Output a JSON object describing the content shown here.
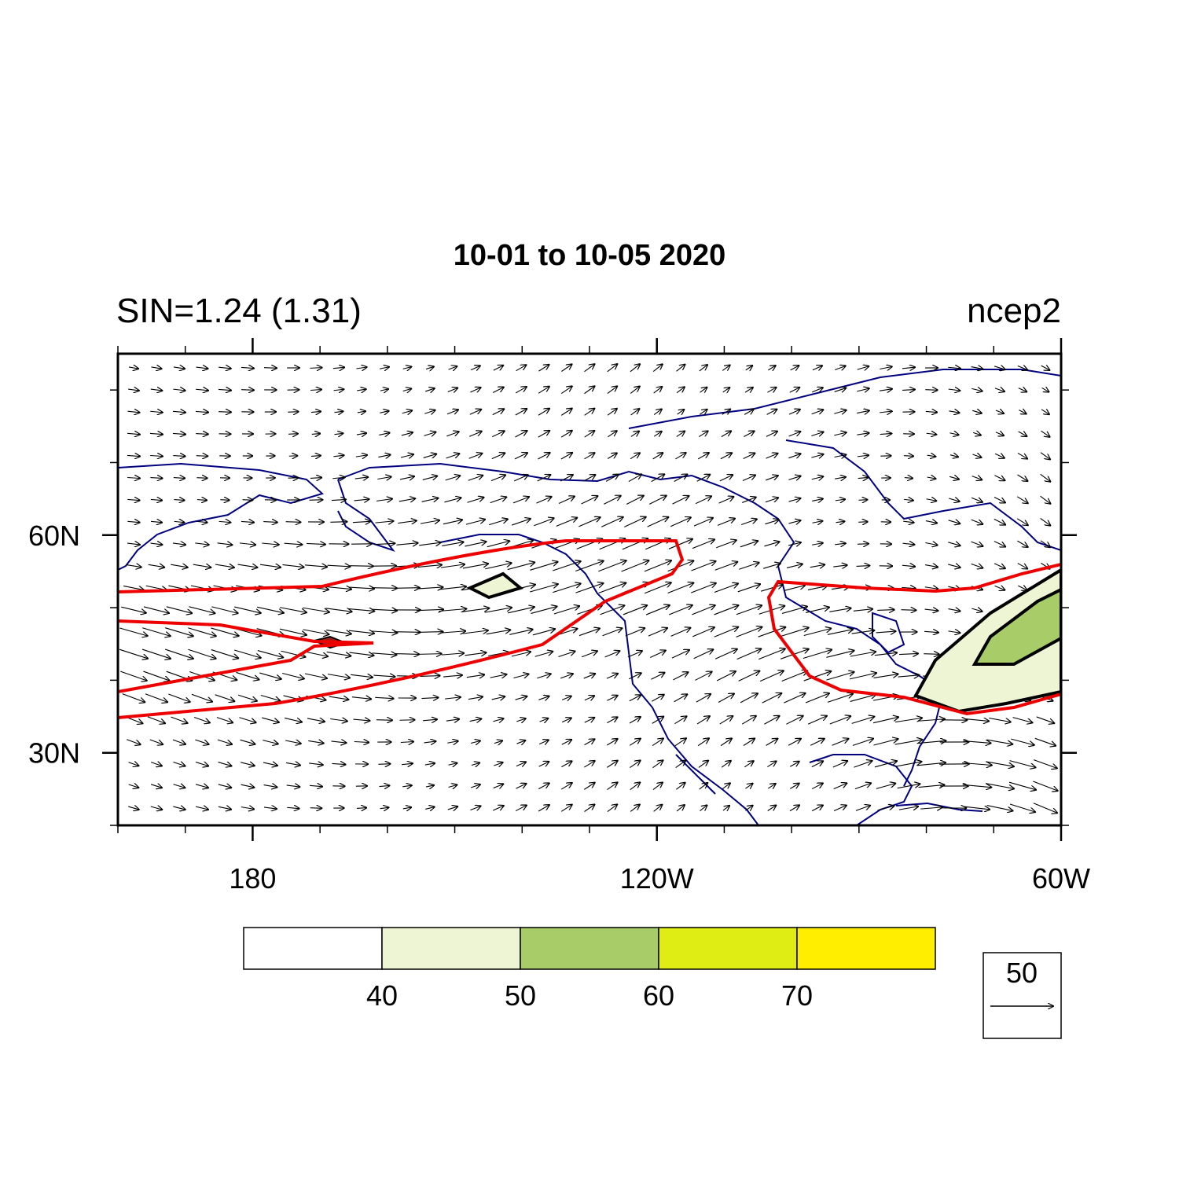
{
  "title": "10-01 to 10-05 2020",
  "left_string": "SIN=1.24 (1.31)",
  "right_string": "ncep2",
  "map": {
    "xlim": [
      160,
      300
    ],
    "ylim": [
      20,
      85
    ],
    "xticks": [
      {
        "value": 180,
        "label": "180"
      },
      {
        "value": 240,
        "label": "120W"
      },
      {
        "value": 300,
        "label": "60W"
      }
    ],
    "yticks": [
      {
        "value": 30,
        "label": "30N"
      },
      {
        "value": 60,
        "label": "60N"
      }
    ],
    "xminorticks": [
      160,
      170,
      190,
      200,
      210,
      220,
      230,
      250,
      260,
      270,
      280,
      290
    ],
    "yminorticks": [
      20,
      40,
      50,
      70,
      80
    ]
  },
  "colorbar": {
    "levels": [
      40,
      50,
      60,
      70
    ],
    "colors": [
      "#ffffff",
      "#eef5d4",
      "#a8cd68",
      "#dfed14",
      "#ffee00"
    ]
  },
  "reference_vector": {
    "magnitude": 50
  }
}
